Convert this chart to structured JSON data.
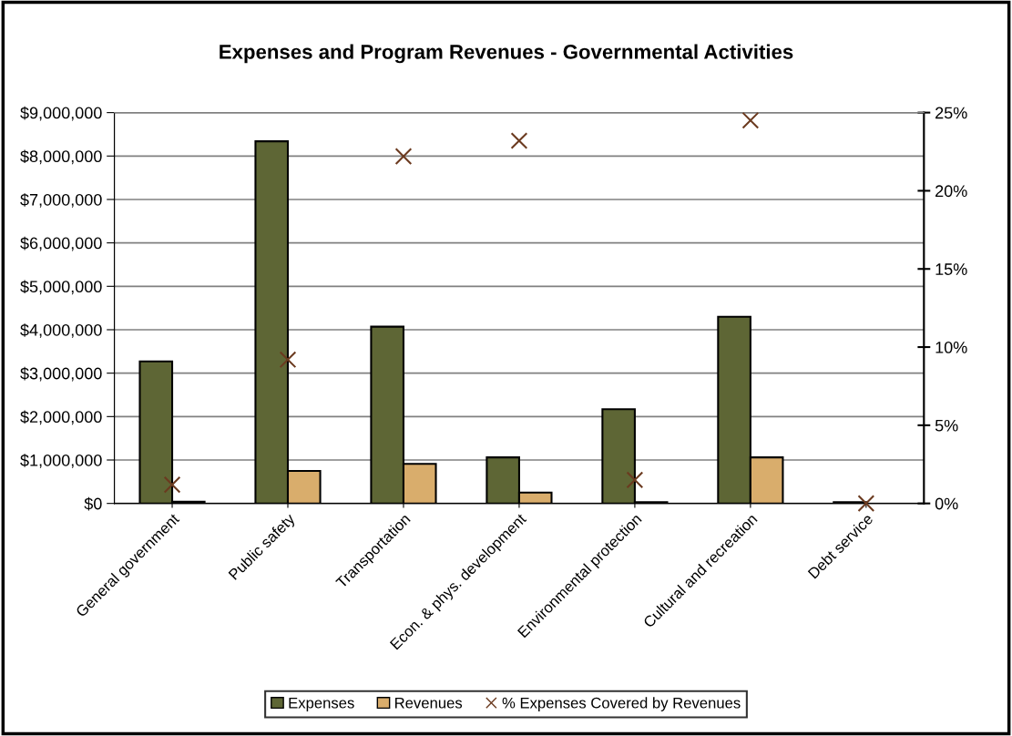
{
  "chart_data": {
    "type": "bar",
    "title": "Expenses and Program Revenues - Governmental Activities",
    "categories": [
      "General government",
      "Public safety",
      "Transportation",
      "Econ. & phys. development",
      "Environmental protection",
      "Cultural and recreation",
      "Debt service"
    ],
    "series": [
      {
        "name": "Expenses",
        "color": "#5e6635",
        "values": [
          3270000,
          8340000,
          4070000,
          1060000,
          2170000,
          4300000,
          30000
        ]
      },
      {
        "name": "Revenues",
        "color": "#d9ad6c",
        "values": [
          40000,
          750000,
          910000,
          250000,
          30000,
          1060000,
          null
        ]
      },
      {
        "name": "% Expenses Covered by Revenues",
        "type": "scatter",
        "axis": "y2",
        "color": "#6b3a1f",
        "marker": "cross",
        "values": [
          1.2,
          9.2,
          22.2,
          23.2,
          1.5,
          24.5,
          0
        ]
      }
    ],
    "ylim": [
      0,
      9000000
    ],
    "yticks": [
      {
        "value": 0,
        "label": "$0"
      },
      {
        "value": 1000000,
        "label": "$1,000,000"
      },
      {
        "value": 2000000,
        "label": "$2,000,000"
      },
      {
        "value": 3000000,
        "label": "$3,000,000"
      },
      {
        "value": 4000000,
        "label": "$4,000,000"
      },
      {
        "value": 5000000,
        "label": "$5,000,000"
      },
      {
        "value": 6000000,
        "label": "$6,000,000"
      },
      {
        "value": 7000000,
        "label": "$7,000,000"
      },
      {
        "value": 8000000,
        "label": "$8,000,000"
      },
      {
        "value": 9000000,
        "label": "$9,000,000"
      }
    ],
    "y2lim": [
      0,
      25
    ],
    "y2ticks": [
      {
        "value": 0,
        "label": "0%"
      },
      {
        "value": 5,
        "label": "5%"
      },
      {
        "value": 10,
        "label": "10%"
      },
      {
        "value": 15,
        "label": "15%"
      },
      {
        "value": 20,
        "label": "20%"
      },
      {
        "value": 25,
        "label": "25%"
      }
    ],
    "grid": "y",
    "legend": "bottom"
  }
}
